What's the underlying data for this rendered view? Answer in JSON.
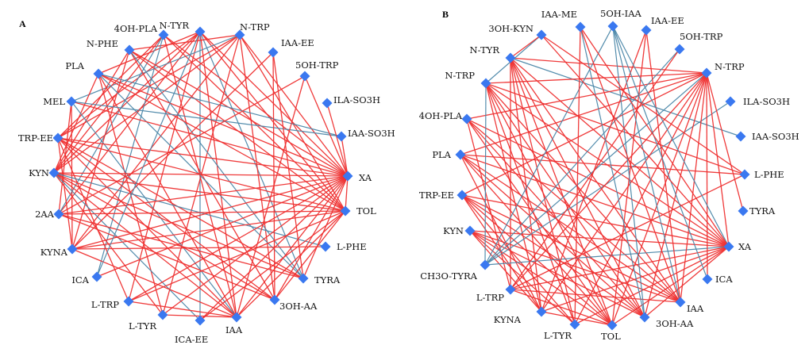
{
  "colors": {
    "positive_edge": "#ee2f2f",
    "negative_edge": "#4a86a8",
    "node": "#3a78f0"
  },
  "panels": [
    {
      "label": "A",
      "nodes": [
        {
          "id": "N-TYR",
          "label": "N-TYR"
        },
        {
          "id": "N-TRP",
          "label": "N-TRP"
        },
        {
          "id": "IAA-EE",
          "label": "IAA-EE"
        },
        {
          "id": "5OH-TRP",
          "label": "5OH-TRP"
        },
        {
          "id": "ILA-SO3H",
          "label": "ILA-SO3H"
        },
        {
          "id": "IAA-SO3H",
          "label": "IAA-SO3H"
        },
        {
          "id": "XA",
          "label": "XA"
        },
        {
          "id": "TOL",
          "label": "TOL"
        },
        {
          "id": "L-PHE",
          "label": "L-PHE"
        },
        {
          "id": "TYRA",
          "label": "TYRA"
        },
        {
          "id": "3OH-AA",
          "label": "3OH-AA"
        },
        {
          "id": "IAA",
          "label": "IAA"
        },
        {
          "id": "ICA-EE",
          "label": "ICA-EE"
        },
        {
          "id": "L-TYR",
          "label": "L-TYR"
        },
        {
          "id": "L-TRP",
          "label": "L-TRP"
        },
        {
          "id": "ICA",
          "label": "ICA"
        },
        {
          "id": "KYNA",
          "label": "KYNA"
        },
        {
          "id": "2AA",
          "label": "2AA"
        },
        {
          "id": "KYN",
          "label": "KYN"
        },
        {
          "id": "TRP-EE",
          "label": "TRP-EE"
        },
        {
          "id": "MEL",
          "label": "MEL"
        },
        {
          "id": "PLA",
          "label": "PLA"
        },
        {
          "id": "N-PHE",
          "label": "N-PHE"
        },
        {
          "id": "4OH-PLA",
          "label": "4OH-PLA"
        }
      ],
      "edges": [
        [
          "N-TYR",
          "XA",
          "pos"
        ],
        [
          "N-TYR",
          "TOL",
          "pos"
        ],
        [
          "N-TYR",
          "IAA",
          "pos"
        ],
        [
          "N-TYR",
          "KYN",
          "pos"
        ],
        [
          "N-TYR",
          "2AA",
          "pos"
        ],
        [
          "N-TYR",
          "L-TRP",
          "pos"
        ],
        [
          "N-TYR",
          "TRP-EE",
          "pos"
        ],
        [
          "N-TYR",
          "PLA",
          "pos"
        ],
        [
          "N-TYR",
          "ICA-EE",
          "neg"
        ],
        [
          "N-TYR",
          "TYRA",
          "neg"
        ],
        [
          "N-TRP",
          "XA",
          "pos"
        ],
        [
          "N-TRP",
          "TOL",
          "pos"
        ],
        [
          "N-TRP",
          "KYN",
          "pos"
        ],
        [
          "N-TRP",
          "TRP-EE",
          "pos"
        ],
        [
          "N-TRP",
          "N-PHE",
          "pos"
        ],
        [
          "N-TRP",
          "L-TYR",
          "pos"
        ],
        [
          "N-TRP",
          "KYNA",
          "pos"
        ],
        [
          "N-TRP",
          "3OH-AA",
          "pos"
        ],
        [
          "N-TRP",
          "MEL",
          "neg"
        ],
        [
          "4OH-PLA",
          "XA",
          "pos"
        ],
        [
          "4OH-PLA",
          "KYN",
          "pos"
        ],
        [
          "4OH-PLA",
          "TRP-EE",
          "pos"
        ],
        [
          "4OH-PLA",
          "IAA",
          "pos"
        ],
        [
          "4OH-PLA",
          "TOL",
          "pos"
        ],
        [
          "4OH-PLA",
          "2AA",
          "neg"
        ],
        [
          "4OH-PLA",
          "ICA",
          "neg"
        ],
        [
          "N-PHE",
          "XA",
          "pos"
        ],
        [
          "N-PHE",
          "KYN",
          "pos"
        ],
        [
          "N-PHE",
          "TOL",
          "pos"
        ],
        [
          "N-PHE",
          "3OH-AA",
          "pos"
        ],
        [
          "N-PHE",
          "KYNA",
          "pos"
        ],
        [
          "N-PHE",
          "TYRA",
          "neg"
        ],
        [
          "PLA",
          "XA",
          "pos"
        ],
        [
          "PLA",
          "KYN",
          "pos"
        ],
        [
          "PLA",
          "TOL",
          "pos"
        ],
        [
          "PLA",
          "IAA",
          "pos"
        ],
        [
          "PLA",
          "L-TYR",
          "pos"
        ],
        [
          "PLA",
          "TYRA",
          "neg"
        ],
        [
          "PLA",
          "IAA-SO3H",
          "neg"
        ],
        [
          "MEL",
          "XA",
          "pos"
        ],
        [
          "MEL",
          "KYNA",
          "pos"
        ],
        [
          "MEL",
          "2AA",
          "pos"
        ],
        [
          "MEL",
          "IAA",
          "neg"
        ],
        [
          "MEL",
          "IAA-SO3H",
          "neg"
        ],
        [
          "TRP-EE",
          "XA",
          "pos"
        ],
        [
          "TRP-EE",
          "TOL",
          "pos"
        ],
        [
          "TRP-EE",
          "IAA",
          "pos"
        ],
        [
          "TRP-EE",
          "L-TRP",
          "pos"
        ],
        [
          "TRP-EE",
          "KYNA",
          "pos"
        ],
        [
          "TRP-EE",
          "TYRA",
          "pos"
        ],
        [
          "TRP-EE",
          "3OH-AA",
          "pos"
        ],
        [
          "KYN",
          "XA",
          "pos"
        ],
        [
          "KYN",
          "TOL",
          "pos"
        ],
        [
          "KYN",
          "TYRA",
          "pos"
        ],
        [
          "KYN",
          "IAA",
          "pos"
        ],
        [
          "KYN",
          "L-TYR",
          "pos"
        ],
        [
          "KYN",
          "3OH-AA",
          "pos"
        ],
        [
          "KYN",
          "L-PHE",
          "neg"
        ],
        [
          "KYN",
          "ICA-EE",
          "neg"
        ],
        [
          "2AA",
          "XA",
          "pos"
        ],
        [
          "2AA",
          "TOL",
          "pos"
        ],
        [
          "2AA",
          "TYRA",
          "pos"
        ],
        [
          "2AA",
          "3OH-AA",
          "pos"
        ],
        [
          "2AA",
          "5OH-TRP",
          "pos"
        ],
        [
          "KYNA",
          "XA",
          "pos"
        ],
        [
          "KYNA",
          "TOL",
          "pos"
        ],
        [
          "KYNA",
          "IAA",
          "pos"
        ],
        [
          "KYNA",
          "L-PHE",
          "pos"
        ],
        [
          "KYNA",
          "IAA-EE",
          "pos"
        ],
        [
          "ICA",
          "XA",
          "pos"
        ],
        [
          "ICA",
          "N-TYR",
          "neg"
        ],
        [
          "L-TRP",
          "TOL",
          "pos"
        ],
        [
          "L-TRP",
          "IAA",
          "pos"
        ],
        [
          "L-TRP",
          "XA",
          "pos"
        ],
        [
          "L-TYR",
          "IAA",
          "pos"
        ],
        [
          "L-TYR",
          "XA",
          "pos"
        ],
        [
          "ICA-EE",
          "XA",
          "pos"
        ],
        [
          "ICA-EE",
          "TOL",
          "pos"
        ],
        [
          "IAA",
          "XA",
          "pos"
        ],
        [
          "IAA",
          "TOL",
          "pos"
        ],
        [
          "IAA",
          "5OH-TRP",
          "pos"
        ],
        [
          "3OH-AA",
          "TOL",
          "pos"
        ],
        [
          "3OH-AA",
          "XA",
          "pos"
        ],
        [
          "3OH-AA",
          "IAA-EE",
          "pos"
        ],
        [
          "TYRA",
          "XA",
          "pos"
        ],
        [
          "TYRA",
          "IAA-EE",
          "pos"
        ],
        [
          "ILA-SO3H",
          "XA",
          "pos"
        ],
        [
          "IAA-SO3H",
          "XA",
          "pos"
        ],
        [
          "5OH-TRP",
          "XA",
          "pos"
        ],
        [
          "TOL",
          "XA",
          "pos"
        ]
      ]
    },
    {
      "label": "B",
      "nodes": [
        {
          "id": "IAA-ME",
          "label": "IAA-ME"
        },
        {
          "id": "5OH-IAA",
          "label": "5OH-IAA"
        },
        {
          "id": "IAA-EE",
          "label": "IAA-EE"
        },
        {
          "id": "5OH-TRP",
          "label": "5OH-TRP"
        },
        {
          "id": "N-TRP2",
          "label": "N-TRP"
        },
        {
          "id": "ILA-SO3H",
          "label": "ILA-SO3H"
        },
        {
          "id": "IAA-SO3H",
          "label": "IAA-SO3H"
        },
        {
          "id": "L-PHE",
          "label": "L-PHE"
        },
        {
          "id": "TYRA",
          "label": "TYRA"
        },
        {
          "id": "XA",
          "label": "XA"
        },
        {
          "id": "ICA",
          "label": "ICA"
        },
        {
          "id": "IAA",
          "label": "IAA"
        },
        {
          "id": "3OH-AA",
          "label": "3OH-AA"
        },
        {
          "id": "TOL",
          "label": "TOL"
        },
        {
          "id": "L-TYR",
          "label": "L-TYR"
        },
        {
          "id": "KYNA",
          "label": "KYNA"
        },
        {
          "id": "L-TRP",
          "label": "L-TRP"
        },
        {
          "id": "CH3O-TYRA",
          "label": "CH3O-TYRA"
        },
        {
          "id": "KYN",
          "label": "KYN"
        },
        {
          "id": "TRP-EE",
          "label": "TRP-EE"
        },
        {
          "id": "PLA",
          "label": "PLA"
        },
        {
          "id": "4OH-PLA",
          "label": "4OH-PLA"
        },
        {
          "id": "N-TRP",
          "label": "N-TRP"
        },
        {
          "id": "N-TYR",
          "label": "N-TYR"
        },
        {
          "id": "3OH-KYN",
          "label": "3OH-KYN"
        }
      ],
      "edges": [
        [
          "N-TYR",
          "N-TRP2",
          "pos"
        ],
        [
          "N-TYR",
          "XA",
          "pos"
        ],
        [
          "N-TYR",
          "IAA",
          "pos"
        ],
        [
          "N-TYR",
          "TOL",
          "pos"
        ],
        [
          "N-TYR",
          "L-TYR",
          "pos"
        ],
        [
          "N-TYR",
          "KYNA",
          "pos"
        ],
        [
          "N-TYR",
          "L-TRP",
          "pos"
        ],
        [
          "N-TYR",
          "3OH-AA",
          "pos"
        ],
        [
          "N-TYR",
          "IAA-SO3H",
          "neg"
        ],
        [
          "N-TRP",
          "N-TRP2",
          "pos"
        ],
        [
          "N-TRP",
          "XA",
          "pos"
        ],
        [
          "N-TRP",
          "IAA",
          "pos"
        ],
        [
          "N-TRP",
          "TOL",
          "pos"
        ],
        [
          "N-TRP",
          "L-TYR",
          "pos"
        ],
        [
          "N-TRP",
          "KYNA",
          "pos"
        ],
        [
          "N-TRP",
          "L-PHE",
          "pos"
        ],
        [
          "N-TRP",
          "3OH-AA",
          "pos"
        ],
        [
          "4OH-PLA",
          "N-TRP2",
          "pos"
        ],
        [
          "4OH-PLA",
          "XA",
          "pos"
        ],
        [
          "4OH-PLA",
          "IAA",
          "pos"
        ],
        [
          "4OH-PLA",
          "TOL",
          "pos"
        ],
        [
          "4OH-PLA",
          "L-TRP",
          "pos"
        ],
        [
          "4OH-PLA",
          "3OH-AA",
          "pos"
        ],
        [
          "PLA",
          "N-TRP2",
          "pos"
        ],
        [
          "PLA",
          "XA",
          "pos"
        ],
        [
          "PLA",
          "IAA",
          "pos"
        ],
        [
          "PLA",
          "L-PHE",
          "pos"
        ],
        [
          "PLA",
          "TOL",
          "pos"
        ],
        [
          "PLA",
          "KYNA",
          "pos"
        ],
        [
          "PLA",
          "3OH-AA",
          "pos"
        ],
        [
          "TRP-EE",
          "XA",
          "pos"
        ],
        [
          "TRP-EE",
          "IAA",
          "pos"
        ],
        [
          "TRP-EE",
          "TOL",
          "pos"
        ],
        [
          "TRP-EE",
          "L-TYR",
          "pos"
        ],
        [
          "TRP-EE",
          "N-TRP2",
          "pos"
        ],
        [
          "TRP-EE",
          "KYNA",
          "pos"
        ],
        [
          "TRP-EE",
          "3OH-AA",
          "pos"
        ],
        [
          "KYN",
          "XA",
          "pos"
        ],
        [
          "KYN",
          "IAA",
          "pos"
        ],
        [
          "KYN",
          "TOL",
          "pos"
        ],
        [
          "KYN",
          "L-TYR",
          "pos"
        ],
        [
          "KYN",
          "KYNA",
          "pos"
        ],
        [
          "KYN",
          "3OH-AA",
          "pos"
        ],
        [
          "CH3O-TYRA",
          "XA",
          "neg"
        ],
        [
          "CH3O-TYRA",
          "N-TRP2",
          "neg"
        ],
        [
          "CH3O-TYRA",
          "ILA-SO3H",
          "neg"
        ],
        [
          "CH3O-TYRA",
          "5OH-IAA",
          "neg"
        ],
        [
          "CH3O-TYRA",
          "5OH-TRP",
          "neg"
        ],
        [
          "CH3O-TYRA",
          "N-TRP",
          "neg"
        ],
        [
          "L-TRP",
          "XA",
          "pos"
        ],
        [
          "L-TRP",
          "N-TRP2",
          "pos"
        ],
        [
          "L-TRP",
          "IAA",
          "pos"
        ],
        [
          "L-TRP",
          "L-PHE",
          "pos"
        ],
        [
          "L-TRP",
          "TOL",
          "pos"
        ],
        [
          "L-TRP",
          "5OH-TRP",
          "pos"
        ],
        [
          "KYNA",
          "XA",
          "pos"
        ],
        [
          "KYNA",
          "IAA-EE",
          "pos"
        ],
        [
          "KYNA",
          "N-TRP2",
          "pos"
        ],
        [
          "KYNA",
          "TOL",
          "pos"
        ],
        [
          "L-TYR",
          "XA",
          "pos"
        ],
        [
          "L-TYR",
          "N-TRP2",
          "pos"
        ],
        [
          "L-TYR",
          "IAA-ME",
          "pos"
        ],
        [
          "TOL",
          "XA",
          "pos"
        ],
        [
          "TOL",
          "N-TRP2",
          "pos"
        ],
        [
          "TOL",
          "IAA-EE",
          "pos"
        ],
        [
          "3OH-AA",
          "XA",
          "pos"
        ],
        [
          "3OH-AA",
          "N-TRP2",
          "pos"
        ],
        [
          "3OH-AA",
          "5OH-IAA",
          "neg"
        ],
        [
          "3OH-AA",
          "IAA-ME",
          "neg"
        ],
        [
          "IAA",
          "N-TRP2",
          "pos"
        ],
        [
          "IAA",
          "IAA-ME",
          "pos"
        ],
        [
          "IAA",
          "5OH-IAA",
          "neg"
        ],
        [
          "IAA",
          "IAA-EE",
          "pos"
        ],
        [
          "ICA",
          "N-TRP2",
          "pos"
        ],
        [
          "ICA",
          "5OH-IAA",
          "neg"
        ],
        [
          "XA",
          "3OH-KYN",
          "pos"
        ],
        [
          "XA",
          "5OH-IAA",
          "neg"
        ],
        [
          "XA",
          "IAA-ME",
          "pos"
        ],
        [
          "XA",
          "N-TRP2",
          "pos"
        ],
        [
          "L-PHE",
          "3OH-KYN",
          "pos"
        ],
        [
          "TYRA",
          "N-TRP2",
          "pos"
        ],
        [
          "3OH-KYN",
          "N-TRP",
          "neg"
        ],
        [
          "3OH-KYN",
          "N-TYR",
          "pos"
        ]
      ]
    }
  ]
}
